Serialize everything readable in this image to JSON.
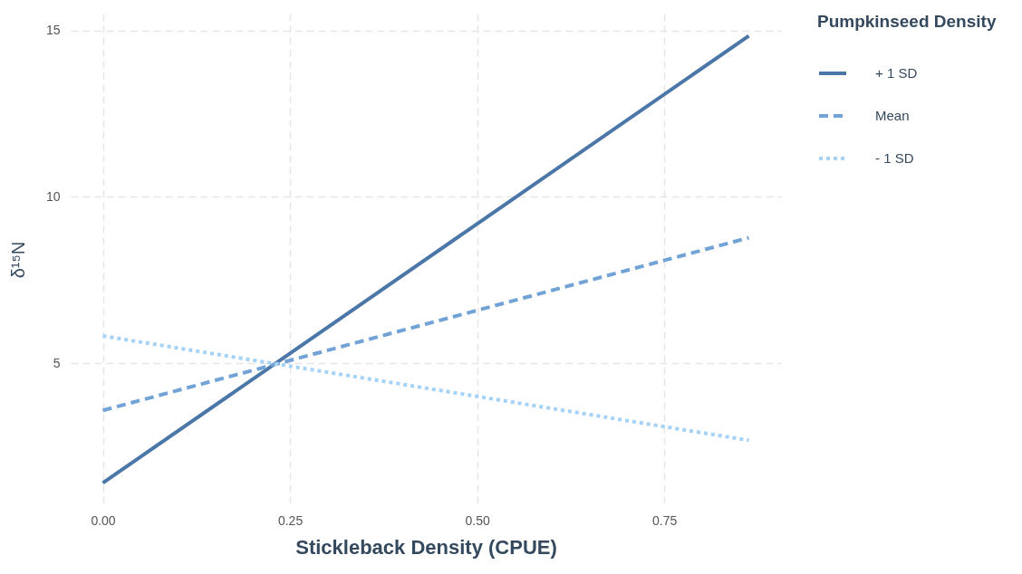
{
  "chart_data": {
    "type": "line",
    "xlabel": "Stickleback Density (CPUE)",
    "ylabel": "δ¹⁵N",
    "legend_title": "Pumpkinseed Density",
    "xlim": [
      -0.043,
      0.906
    ],
    "ylim": [
      0.73,
      15.51
    ],
    "xticks": [
      {
        "value": 0,
        "label": "0.00"
      },
      {
        "value": 0.25,
        "label": "0.25"
      },
      {
        "value": 0.5,
        "label": "0.50"
      },
      {
        "value": 0.75,
        "label": "0.75"
      }
    ],
    "yticks": [
      5,
      10,
      15
    ],
    "x": [
      0,
      0.863
    ],
    "grid": true,
    "legend": "right",
    "series": [
      {
        "name": "+ 1 SD",
        "color": "#4a76a8",
        "line_style": "solid",
        "values": [
          1.4,
          14.84
        ]
      },
      {
        "name": "Mean",
        "color": "#72a3d6",
        "line_style": "dashed",
        "values": [
          3.58,
          8.77
        ]
      },
      {
        "name": "- 1 SD",
        "color": "#a5d2f7",
        "line_style": "dotted",
        "values": [
          5.82,
          2.68
        ]
      }
    ]
  }
}
